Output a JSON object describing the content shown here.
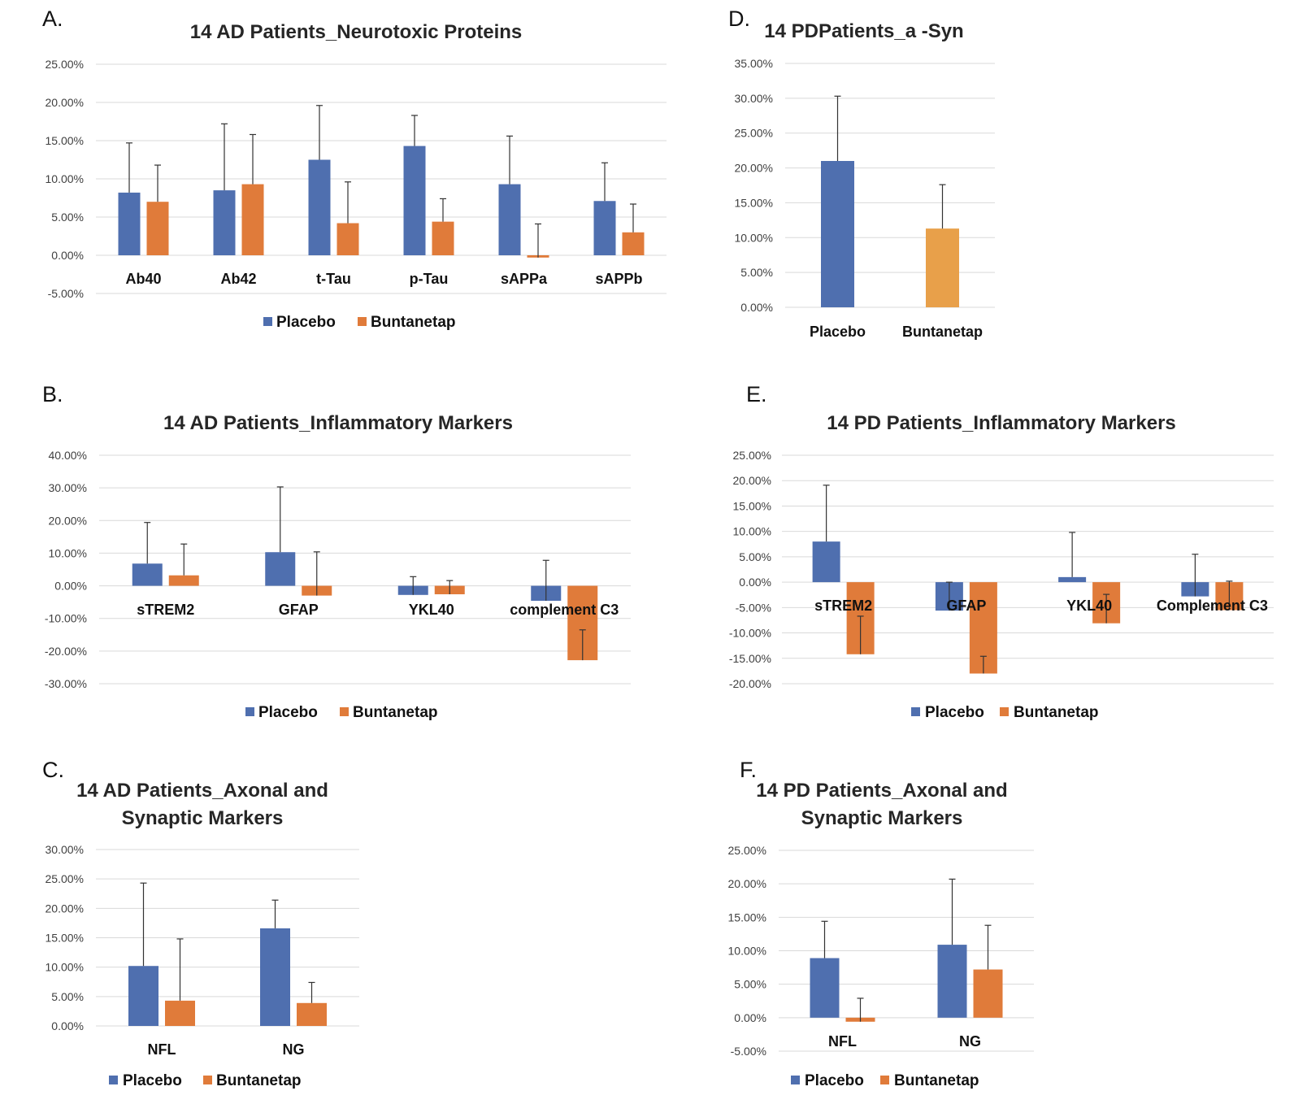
{
  "colors": {
    "placebo": "#4f6faf",
    "buntanetap": "#e07b3a",
    "buntanetap_light": "#e8a04a",
    "grid": "#d9d9d9"
  },
  "chart_data": [
    {
      "panel": "A.",
      "type": "bar",
      "title": "14 AD Patients_Neurotoxic Proteins",
      "categories": [
        "Ab40",
        "Ab42",
        "t-Tau",
        "p-Tau",
        "sAPPa",
        "sAPPb"
      ],
      "yticks": [
        "25.00%",
        "20.00%",
        "15.00%",
        "10.00%",
        "5.00%",
        "0.00%",
        "-5.00%"
      ],
      "ylim": [
        -5,
        25
      ],
      "series": [
        {
          "name": "Placebo",
          "values": [
            8.2,
            8.5,
            12.5,
            14.3,
            9.3,
            7.1
          ],
          "errors": [
            6.5,
            8.7,
            7.1,
            4.0,
            6.3,
            5.0
          ]
        },
        {
          "name": "Buntanetap",
          "values": [
            7.0,
            9.3,
            4.2,
            4.4,
            -0.3,
            3.0
          ],
          "errors": [
            4.8,
            6.5,
            5.4,
            3.0,
            4.4,
            3.7
          ]
        }
      ],
      "legend": "bottom"
    },
    {
      "panel": "B.",
      "type": "bar",
      "title": "14 AD Patients_Inflammatory Markers",
      "categories": [
        "sTREM2",
        "GFAP",
        "YKL40",
        "complement C3"
      ],
      "yticks": [
        "40.00%",
        "30.00%",
        "20.00%",
        "10.00%",
        "0.00%",
        "-10.00%",
        "-20.00%",
        "-30.00%"
      ],
      "ylim": [
        -30,
        40
      ],
      "series": [
        {
          "name": "Placebo",
          "values": [
            6.8,
            10.3,
            -2.8,
            -4.6
          ],
          "errors": [
            12.6,
            20.0,
            5.6,
            12.4
          ]
        },
        {
          "name": "Buntanetap",
          "values": [
            3.2,
            -3.0,
            -2.6,
            -22.8
          ],
          "errors": [
            9.6,
            13.4,
            4.2,
            9.3
          ]
        }
      ],
      "legend": "bottom"
    },
    {
      "panel": "C.",
      "type": "bar",
      "title": "14 AD Patients_Axonal and Synaptic Markers",
      "categories": [
        "NFL",
        "NG"
      ],
      "yticks": [
        "30.00%",
        "25.00%",
        "20.00%",
        "15.00%",
        "10.00%",
        "5.00%",
        "0.00%"
      ],
      "ylim": [
        0,
        30
      ],
      "series": [
        {
          "name": "Placebo",
          "values": [
            10.2,
            16.6
          ],
          "errors": [
            14.1,
            4.8
          ]
        },
        {
          "name": "Buntanetap",
          "values": [
            4.3,
            3.9
          ],
          "errors": [
            10.5,
            3.5
          ]
        }
      ],
      "legend": "bottom"
    },
    {
      "panel": "D.",
      "type": "bar",
      "title": "14 PDPatients_a -Syn",
      "categories": [
        "Placebo",
        "Buntanetap"
      ],
      "yticks": [
        "35.00%",
        "30.00%",
        "25.00%",
        "20.00%",
        "15.00%",
        "10.00%",
        "5.00%",
        "0.00%"
      ],
      "ylim": [
        0,
        35
      ],
      "values": [
        21.0,
        11.3
      ],
      "errors": [
        9.3,
        6.3
      ],
      "legend": "none"
    },
    {
      "panel": "E.",
      "type": "bar",
      "title": "14 PD Patients_Inflammatory Markers",
      "categories": [
        "sTREM2",
        "GFAP",
        "YKL40",
        "Complement C3"
      ],
      "yticks": [
        "25.00%",
        "20.00%",
        "15.00%",
        "10.00%",
        "5.00%",
        "0.00%",
        "-5.00%",
        "-10.00%",
        "-15.00%",
        "-20.00%"
      ],
      "ylim": [
        -20,
        25
      ],
      "series": [
        {
          "name": "Placebo",
          "values": [
            8.0,
            -5.6,
            1.0,
            -2.8
          ],
          "errors": [
            11.1,
            5.6,
            8.8,
            8.3
          ]
        },
        {
          "name": "Buntanetap",
          "values": [
            -14.2,
            -18.0,
            -8.1,
            -5.5
          ],
          "errors": [
            7.5,
            3.4,
            5.7,
            5.7
          ]
        }
      ],
      "legend": "bottom"
    },
    {
      "panel": "F.",
      "type": "bar",
      "title": "14 PD Patients_Axonal and Synaptic Markers",
      "categories": [
        "NFL",
        "NG"
      ],
      "yticks": [
        "25.00%",
        "20.00%",
        "15.00%",
        "10.00%",
        "5.00%",
        "0.00%",
        "-5.00%"
      ],
      "ylim": [
        -5,
        25
      ],
      "series": [
        {
          "name": "Placebo",
          "values": [
            8.9,
            10.9
          ],
          "errors": [
            5.5,
            9.8
          ]
        },
        {
          "name": "Buntanetap",
          "values": [
            -0.6,
            7.2
          ],
          "errors": [
            3.5,
            6.6
          ]
        }
      ],
      "legend": "bottom"
    }
  ]
}
